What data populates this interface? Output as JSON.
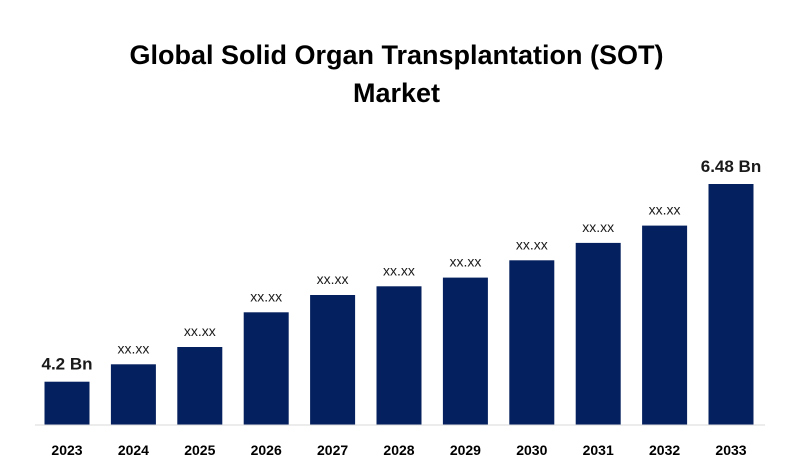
{
  "title": {
    "line1": "Global Solid Organ Transplantation (SOT)",
    "line2": "Market"
  },
  "colors": {
    "bar": "#05205e",
    "axis": "#d9d9d9",
    "background": "#ffffff"
  },
  "chart_data": {
    "type": "bar",
    "title": "Global Solid Organ Transplantation (SOT) Market",
    "xlabel": "",
    "ylabel": "",
    "categories": [
      "2023",
      "2024",
      "2025",
      "2026",
      "2027",
      "2028",
      "2029",
      "2030",
      "2031",
      "2032",
      "2033"
    ],
    "values": [
      4.2,
      4.4,
      4.6,
      5.0,
      5.2,
      5.3,
      5.4,
      5.6,
      5.8,
      6.0,
      6.48
    ],
    "data_labels": [
      "4.2 Bn",
      "xx.xx",
      "xx.xx",
      "xx.xx",
      "xx.xx",
      "xx.xx",
      "xx.xx",
      "xx.xx",
      "xx.xx",
      "xx.xx",
      "6.48 Bn"
    ],
    "ylim": [
      3.7,
      6.48
    ],
    "grid": false,
    "legend": "none"
  }
}
